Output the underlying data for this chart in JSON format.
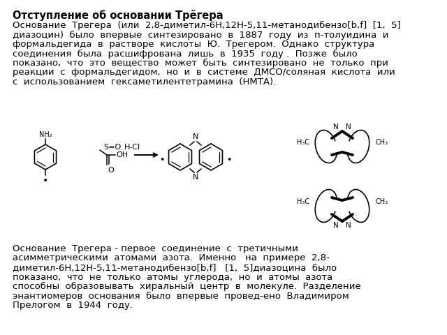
{
  "title": "Отступление об основании Трёгера",
  "body_fontsize": 9.5,
  "title_fontsize": 10.5,
  "background_color": "#ffffff",
  "text_color": "#000000",
  "paragraph1_lines": [
    "Основание  Трегера  (или  2,8-диметил-6H,12H-5,11-метанодибензо[b,f]  [1,  5]",
    "диазоцин)  было  впервые  синтезировано  в  1887  году  из  п-толуидина  и",
    "формальдегида  в  растворе  кислоты  Ю.  Трегером.  Однако  структура",
    "соединения  была  расшифрована  лишь  в  1935  году .  Позже  было",
    "показано,  что  это  вещество  может  быть  синтезировано  не  только  при",
    "реакции  с  формальдегидом,  но  и  в  системе  ДМСО/соляная  кислота  или",
    "с  использованием  гексаметилентетрамина  (НМТА)."
  ],
  "paragraph2_lines": [
    "Основание  Трегера - первое  соединение  с  третичными",
    "асимметрическими  атомами  азота.  Именно   на  примере  2,8-",
    "диметил-6H,12H-5,11-метанодибензо[b,f]   [1,  5]диазоцина  было",
    "показано,  что  не  только  атомы  углерода,  но  и  атомы  азота",
    "способны  образовывать  хиральный  центр  в  молекуле.  Разделение",
    "энантиомеров  основания  было  впервые  провед-ено  Владимиром",
    "Прелогом  в  1944  году."
  ],
  "fig_width": 6.4,
  "fig_height": 4.8,
  "dpi": 100
}
